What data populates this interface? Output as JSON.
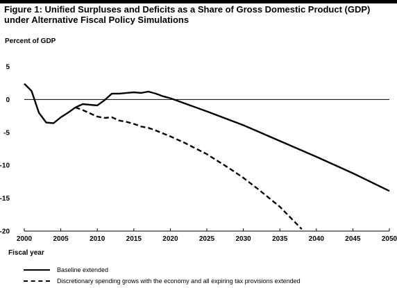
{
  "title": "Figure 1: Unified Surpluses and Deficits as a Share of Gross Domestic Product (GDP) under Alternative Fiscal Policy Simulations",
  "chart_data": {
    "type": "line",
    "title": "Figure 1: Unified Surpluses and Deficits as a Share of Gross Domestic Product (GDP) under Alternative Fiscal Policy Simulations",
    "ylabel": "Percent of GDP",
    "xlabel": "Fiscal year",
    "xlim": [
      2000,
      2050
    ],
    "ylim": [
      -20,
      5
    ],
    "x_ticks": [
      2000,
      2005,
      2010,
      2015,
      2020,
      2025,
      2030,
      2035,
      2040,
      2045,
      2050
    ],
    "y_ticks": [
      5,
      0,
      -5,
      -10,
      -15,
      -20
    ],
    "grid": false,
    "zero_line": true,
    "legend_position": "bottom",
    "series": [
      {
        "name": "Baseline extended",
        "style": "solid",
        "x": [
          2000,
          2001,
          2002,
          2003,
          2004,
          2005,
          2006,
          2007,
          2008,
          2009,
          2010,
          2011,
          2012,
          2013,
          2014,
          2015,
          2016,
          2017,
          2018,
          2019,
          2020,
          2025,
          2030,
          2035,
          2040,
          2045,
          2050
        ],
        "y": [
          2.4,
          1.3,
          -2.0,
          -3.5,
          -3.6,
          -2.7,
          -2.0,
          -1.2,
          -0.7,
          -0.8,
          -0.9,
          -0.1,
          0.9,
          0.9,
          1.0,
          1.1,
          1.0,
          1.2,
          0.9,
          0.5,
          0.2,
          -1.8,
          -3.9,
          -6.3,
          -8.7,
          -11.2,
          -13.9
        ]
      },
      {
        "name": "Discretionary spending grows with the economy and all expiring tax provisions extended",
        "style": "dashed",
        "x": [
          2007,
          2008,
          2009,
          2010,
          2011,
          2012,
          2013,
          2014,
          2015,
          2016,
          2017,
          2018,
          2020,
          2022,
          2025,
          2028,
          2030,
          2032,
          2035,
          2038
        ],
        "y": [
          -1.2,
          -1.6,
          -2.1,
          -2.6,
          -2.8,
          -2.7,
          -3.2,
          -3.4,
          -3.7,
          -4.1,
          -4.3,
          -4.7,
          -5.6,
          -6.6,
          -8.3,
          -10.4,
          -11.9,
          -13.6,
          -16.3,
          -19.7
        ]
      }
    ]
  }
}
